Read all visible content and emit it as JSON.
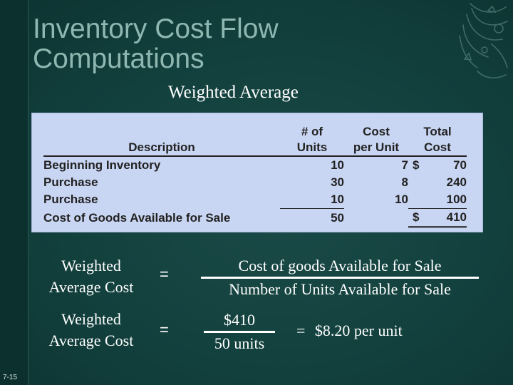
{
  "slide": {
    "number": "7-15",
    "title_line1": "Inventory Cost Flow",
    "title_line2": "Computations",
    "subtitle": "Weighted Average"
  },
  "table": {
    "headers": {
      "description": "Description",
      "units_line1": "# of",
      "units_line2": "Units",
      "cost_line1": "Cost",
      "cost_line2": "per Unit",
      "total_line1": "Total",
      "total_line2": "Cost"
    },
    "rows": [
      {
        "description": "Beginning Inventory",
        "units": "10",
        "cost_per_unit": "7",
        "currency": "$",
        "total": "70"
      },
      {
        "description": "Purchase",
        "units": "30",
        "cost_per_unit": "8",
        "currency": "",
        "total": "240"
      },
      {
        "description": "Purchase",
        "units": "10",
        "cost_per_unit": "10",
        "currency": "",
        "total": "100"
      },
      {
        "description": "Cost of Goods Available for Sale",
        "units": "50",
        "cost_per_unit": "",
        "currency": "$",
        "total": "410"
      }
    ]
  },
  "formulas": [
    {
      "label_line1": "Weighted",
      "label_line2": "Average Cost",
      "equals": "=",
      "numerator": "Cost of goods Available for Sale",
      "denominator": "Number of Units Available for Sale"
    },
    {
      "label_line1": "Weighted",
      "label_line2": "Average Cost",
      "equals": "=",
      "numerator": "$410",
      "denominator": "50 units",
      "result_equals": "=",
      "result": "$8.20 per unit"
    }
  ],
  "colors": {
    "background": "#12403d",
    "title": "#8fb7b2",
    "table_panel": "#c9d6f3",
    "text_light": "#ffffff"
  }
}
